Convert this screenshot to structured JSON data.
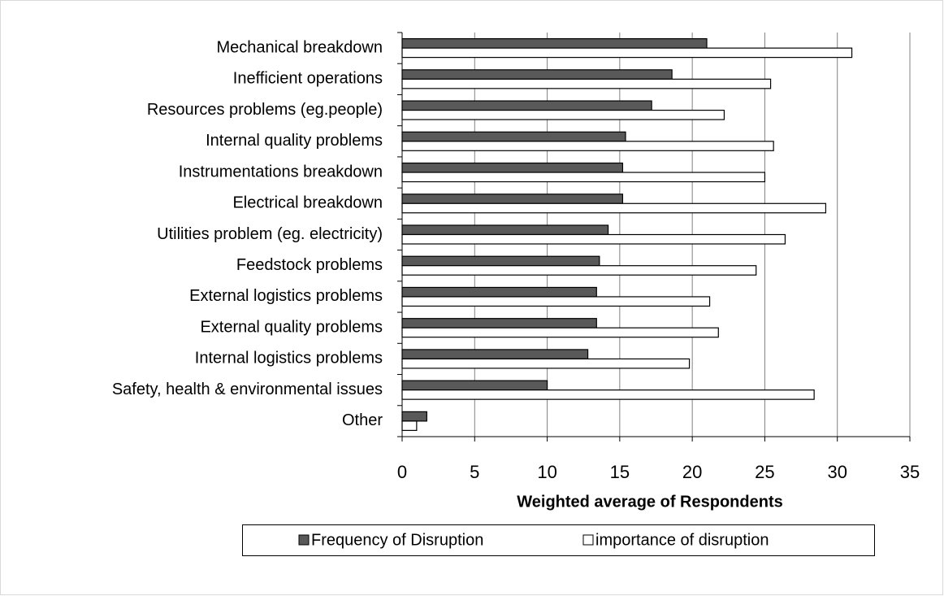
{
  "chart_data": {
    "type": "bar",
    "orientation": "horizontal",
    "x_label": "Weighted average of Respondents",
    "categories": [
      "Mechanical breakdown",
      "Inefficient operations",
      "Resources problems (eg.people)",
      "Internal quality problems",
      "Instrumentations breakdown",
      "Electrical breakdown",
      "Utilities problem (eg. electricity)",
      "Feedstock problems",
      "External logistics problems",
      "External quality problems",
      "Internal logistics problems",
      "Safety, health & environmental issues",
      "Other"
    ],
    "series": [
      {
        "name": "Frequency of Disruption",
        "color": "#595959",
        "values": [
          21.0,
          18.6,
          17.2,
          15.4,
          15.2,
          15.2,
          14.2,
          13.6,
          13.4,
          13.4,
          12.8,
          10.0,
          1.7
        ]
      },
      {
        "name": "importance of disruption",
        "color": "#ffffff",
        "values": [
          31.0,
          25.4,
          22.2,
          25.6,
          25.0,
          29.2,
          26.4,
          24.4,
          21.2,
          21.8,
          19.8,
          28.4,
          1.0
        ]
      }
    ],
    "xlim": [
      0,
      35
    ],
    "xticks": [
      0,
      5,
      10,
      15,
      20,
      25,
      30,
      35
    ],
    "grid": true,
    "legend": "bottom"
  }
}
